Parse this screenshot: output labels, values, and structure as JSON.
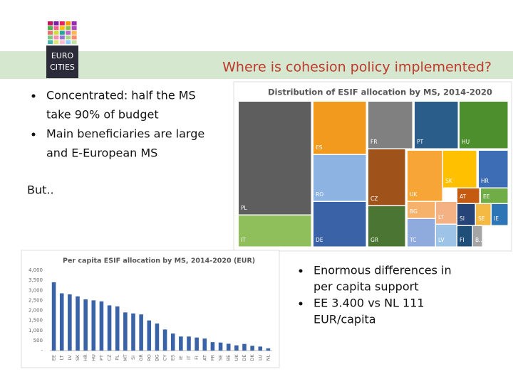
{
  "header": {
    "title": "Where is cohesion policy implemented?"
  },
  "logo": {
    "lines": [
      "EURO",
      "CITIES"
    ]
  },
  "bullets_top": [
    {
      "lines": [
        "Concentrated: half the MS",
        "take 90% of budget"
      ]
    },
    {
      "lines": [
        "Main beneficiaries are large",
        "and E-European MS"
      ]
    }
  ],
  "but": "But..",
  "bullets_bottom": [
    {
      "lines": [
        "Enormous differences in",
        "per capita support"
      ]
    },
    {
      "lines": [
        "EE 3.400 vs NL 111",
        "EUR/capita"
      ]
    }
  ],
  "chart_data": [
    {
      "type": "treemap",
      "title": "Distribution of ESIF allocation by MS, 2014-2020",
      "categories": [
        "PL",
        "IT",
        "ES",
        "RO",
        "DE",
        "FR",
        "CZ",
        "GR",
        "PT",
        "HU",
        "UK",
        "BG",
        "TC",
        "SK",
        "HR",
        "LT",
        "LV",
        "AT",
        "EE",
        "SI",
        "SE",
        "IE",
        "FI",
        "B.."
      ],
      "values": [
        86,
        42,
        37,
        31,
        28,
        27,
        24,
        20,
        26,
        25,
        16,
        10,
        6,
        14,
        11,
        8.4,
        5.6,
        4.9,
        4.4,
        3.9,
        3.6,
        3.4,
        3.8,
        2.7
      ],
      "colors": [
        "#5e5e5e",
        "#8fbf5a",
        "#f29a1d",
        "#8db3e2",
        "#3a62a6",
        "#808080",
        "#a0521b",
        "#4a7532",
        "#2a5d8a",
        "#4e8f2d",
        "#f7a537",
        "#f6b26b",
        "#8faadc",
        "#ffc000",
        "#3d6db5",
        "#f4b183",
        "#9dc3e6",
        "#c55a11",
        "#70ad47",
        "#264478",
        "#f4b942",
        "#2e75b6",
        "#1f4e79",
        "#a5a5a5"
      ]
    },
    {
      "type": "bar",
      "title": "Per capita ESIF allocation by MS, 2014-2020 (EUR)",
      "categories": [
        "EE",
        "LT",
        "LV",
        "SK",
        "HR",
        "HU",
        "PT",
        "CZ",
        "PL",
        "MT",
        "SI",
        "GR",
        "RO",
        "BG",
        "CY",
        "ES",
        "IE",
        "IT",
        "FI",
        "AT",
        "FR",
        "SE",
        "BE",
        "UK",
        "DE",
        "DK",
        "LU",
        "NL"
      ],
      "values": [
        3400,
        2850,
        2800,
        2700,
        2550,
        2500,
        2450,
        2250,
        2200,
        1900,
        1850,
        1800,
        1500,
        1350,
        1050,
        850,
        700,
        700,
        650,
        600,
        420,
        400,
        340,
        260,
        330,
        240,
        200,
        111
      ],
      "color": "#3a62a6",
      "ylim": [
        0,
        4000
      ],
      "yticks": [
        {
          "value": 0,
          "label": "-"
        },
        500,
        {
          "value": 1000,
          "label": "1,000"
        },
        {
          "value": 1500,
          "label": "1,500"
        },
        {
          "value": 2000,
          "label": "2,000"
        },
        {
          "value": 2500,
          "label": "2,500"
        },
        {
          "value": 3000,
          "label": "3,000"
        },
        {
          "value": 3500,
          "label": "3,500"
        },
        {
          "value": 4000,
          "label": "4,000"
        }
      ]
    }
  ]
}
